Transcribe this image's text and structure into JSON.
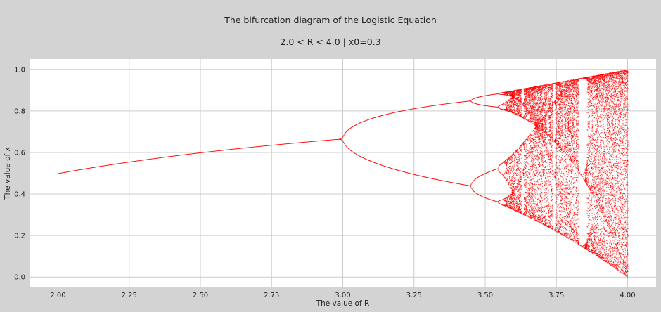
{
  "chart_data": {
    "type": "scatter",
    "title": "The bifurcation diagram of the Logistic Equation",
    "subtitle": "2.0 < R < 4.0  |  x0=0.3",
    "xlabel": "The value of R",
    "ylabel": "The value of x",
    "xlim": [
      1.9,
      4.1
    ],
    "ylim": [
      -0.05,
      1.05
    ],
    "xticks": [
      "2.00",
      "2.25",
      "2.50",
      "2.75",
      "3.00",
      "3.25",
      "3.50",
      "3.75",
      "4.00"
    ],
    "yticks": [
      "0.0",
      "0.2",
      "0.4",
      "0.6",
      "0.8",
      "1.0"
    ],
    "grid": true,
    "background": "#ffffff",
    "figure_background": "#d3d3d3",
    "series": [
      {
        "color": "#ff0000",
        "r_min": 2.0,
        "r_max": 4.0,
        "x0": 0.3,
        "sample": [
          [
            2.0,
            0.5
          ],
          [
            2.25,
            0.556
          ],
          [
            2.5,
            0.6
          ],
          [
            2.75,
            0.636
          ],
          [
            3.0,
            0.667
          ],
          [
            3.25,
            0.813
          ],
          [
            3.25,
            0.495
          ],
          [
            3.45,
            0.846
          ],
          [
            3.45,
            0.44
          ],
          [
            3.5,
            0.875
          ],
          [
            3.5,
            0.383
          ],
          [
            3.5,
            0.827
          ],
          [
            3.5,
            0.501
          ],
          [
            4.0,
            0.0
          ],
          [
            4.0,
            1.0
          ]
        ]
      }
    ]
  }
}
